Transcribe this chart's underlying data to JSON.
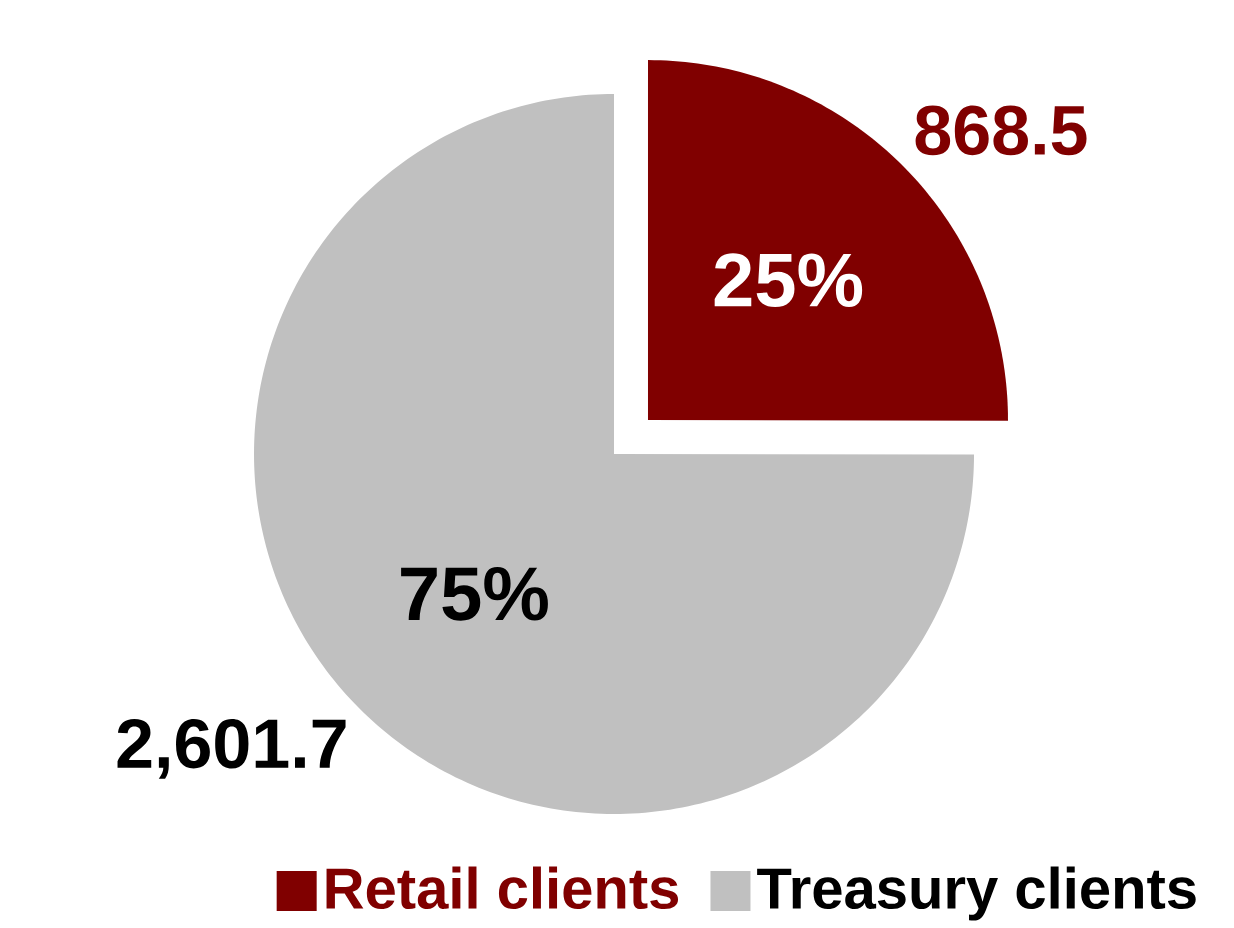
{
  "chart_data": {
    "type": "pie",
    "categories": [
      "Retail clients",
      "Treasury clients"
    ],
    "values": [
      868.5,
      2601.7
    ],
    "colors": [
      "#800000",
      "#c0c0c0"
    ],
    "value_labels": [
      "868.5",
      "2,601.7"
    ],
    "annotations": [
      "25%",
      "75%"
    ],
    "legend": "bottom"
  }
}
